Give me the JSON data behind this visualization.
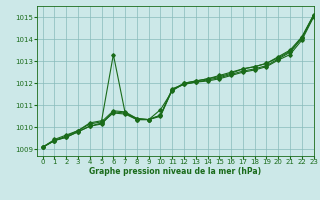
{
  "title": "Graphe pression niveau de la mer (hPa)",
  "bg_color": "#cce8e8",
  "grid_color": "#88bbbb",
  "line_color": "#1a6b1a",
  "xlim": [
    -0.5,
    23
  ],
  "ylim": [
    1008.7,
    1015.5
  ],
  "yticks": [
    1009,
    1010,
    1011,
    1012,
    1013,
    1014,
    1015
  ],
  "xticks": [
    0,
    1,
    2,
    3,
    4,
    5,
    6,
    7,
    8,
    9,
    10,
    11,
    12,
    13,
    14,
    15,
    16,
    17,
    18,
    19,
    20,
    21,
    22,
    23
  ],
  "lines": [
    [
      1009.1,
      1009.4,
      1009.55,
      1009.8,
      1010.05,
      1010.15,
      1010.7,
      1010.65,
      1010.35,
      1010.35,
      1010.55,
      1011.75,
      1011.95,
      1012.05,
      1012.1,
      1012.2,
      1012.35,
      1012.5,
      1012.6,
      1012.75,
      1013.05,
      1013.3,
      1013.95,
      1015.0
    ],
    [
      1009.1,
      1009.4,
      1009.55,
      1009.8,
      1010.05,
      1010.2,
      1010.65,
      1010.6,
      1010.35,
      1010.35,
      1010.55,
      1011.7,
      1011.95,
      1012.05,
      1012.15,
      1012.25,
      1012.4,
      1012.55,
      1012.65,
      1012.8,
      1013.1,
      1013.4,
      1014.05,
      1015.05
    ],
    [
      1009.1,
      1009.4,
      1009.6,
      1009.85,
      1010.15,
      1010.25,
      1010.75,
      1010.7,
      1010.4,
      1010.35,
      1010.8,
      1011.65,
      1012.0,
      1012.1,
      1012.2,
      1012.3,
      1012.45,
      1012.65,
      1012.75,
      1012.9,
      1013.2,
      1013.5,
      1014.1,
      1015.1
    ],
    [
      1009.1,
      1009.45,
      1009.65,
      1009.85,
      1010.2,
      1010.3,
      1013.3,
      1010.65,
      1010.4,
      1010.35,
      1010.5,
      1011.7,
      1012.0,
      1012.1,
      1012.2,
      1012.35,
      1012.5,
      1012.65,
      1012.75,
      1012.9,
      1013.15,
      1013.45,
      1014.05,
      1015.08
    ]
  ]
}
